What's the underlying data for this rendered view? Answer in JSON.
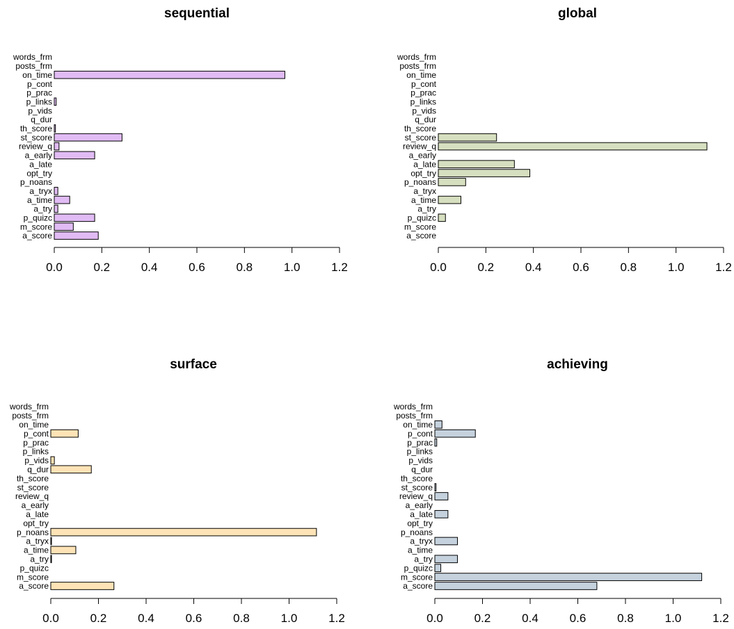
{
  "chart_data": [
    {
      "type": "bar",
      "orientation": "horizontal",
      "title": "sequential",
      "xlim": [
        0,
        1.2
      ],
      "ticks": [
        "0.0",
        "0.2",
        "0.4",
        "0.6",
        "0.8",
        "1.0",
        "1.2"
      ],
      "grid": false,
      "color": "#e1bbf4",
      "categories": [
        "a_score",
        "m_score",
        "p_quizc",
        "a_try",
        "a_time",
        "a_tryx",
        "p_noans",
        "opt_try",
        "a_late",
        "a_early",
        "review_q",
        "st_score",
        "th_score",
        "q_dur",
        "p_vids",
        "p_links",
        "p_prac",
        "p_cont",
        "on_time",
        "posts_frm",
        "words_frm"
      ],
      "values": [
        0.185,
        0.08,
        0.17,
        0.015,
        0.065,
        0.015,
        0.0,
        0.0,
        0.0,
        0.17,
        0.02,
        0.285,
        0.005,
        0.0,
        0.0,
        0.008,
        0.0,
        0.0,
        0.97,
        0.0,
        0.0
      ]
    },
    {
      "type": "bar",
      "orientation": "horizontal",
      "title": "global",
      "xlim": [
        0,
        1.2
      ],
      "ticks": [
        "0.0",
        "0.2",
        "0.4",
        "0.6",
        "0.8",
        "1.0",
        "1.2"
      ],
      "grid": false,
      "color": "#d6dfbf",
      "categories": [
        "a_score",
        "m_score",
        "p_quizc",
        "a_try",
        "a_time",
        "a_tryx",
        "p_noans",
        "opt_try",
        "a_late",
        "a_early",
        "review_q",
        "st_score",
        "th_score",
        "q_dur",
        "p_vids",
        "p_links",
        "p_prac",
        "p_cont",
        "on_time",
        "posts_frm",
        "words_frm"
      ],
      "values": [
        0.0,
        0.0,
        0.03,
        0.0,
        0.095,
        0.0,
        0.115,
        0.385,
        0.32,
        0.0,
        1.13,
        0.245,
        0.0,
        0.0,
        0.0,
        0.0,
        0.0,
        0.0,
        0.0,
        0.0,
        0.0
      ]
    },
    {
      "type": "bar",
      "orientation": "horizontal",
      "title": "surface",
      "xlim": [
        0,
        1.2
      ],
      "ticks": [
        "0.0",
        "0.2",
        "0.4",
        "0.6",
        "0.8",
        "1.0",
        "1.2"
      ],
      "grid": false,
      "color": "#fde3b6",
      "categories": [
        "a_score",
        "m_score",
        "p_quizc",
        "a_try",
        "a_time",
        "a_tryx",
        "p_noans",
        "opt_try",
        "a_late",
        "a_early",
        "review_q",
        "st_score",
        "th_score",
        "q_dur",
        "p_vids",
        "p_links",
        "p_prac",
        "p_cont",
        "on_time",
        "posts_frm",
        "words_frm"
      ],
      "values": [
        0.265,
        0.0,
        0.0,
        0.003,
        0.105,
        0.003,
        1.115,
        0.0,
        0.0,
        0.0,
        0.0,
        0.0,
        0.0,
        0.17,
        0.015,
        0.0,
        0.0,
        0.115,
        0.0,
        0.0,
        0.0
      ]
    },
    {
      "type": "bar",
      "orientation": "horizontal",
      "title": "achieving",
      "xlim": [
        0,
        1.2
      ],
      "ticks": [
        "0.0",
        "0.2",
        "0.4",
        "0.6",
        "0.8",
        "1.0",
        "1.2"
      ],
      "grid": false,
      "color": "#c5d2de",
      "categories": [
        "a_score",
        "m_score",
        "p_quizc",
        "a_try",
        "a_time",
        "a_tryx",
        "p_noans",
        "opt_try",
        "a_late",
        "a_early",
        "review_q",
        "st_score",
        "th_score",
        "q_dur",
        "p_vids",
        "p_links",
        "p_prac",
        "p_cont",
        "on_time",
        "posts_frm",
        "words_frm"
      ],
      "values": [
        0.68,
        1.12,
        0.025,
        0.095,
        0.0,
        0.095,
        0.0,
        0.0,
        0.055,
        0.0,
        0.055,
        0.005,
        0.0,
        0.0,
        0.0,
        0.0,
        0.008,
        0.17,
        0.03,
        0.0,
        0.0
      ]
    }
  ]
}
